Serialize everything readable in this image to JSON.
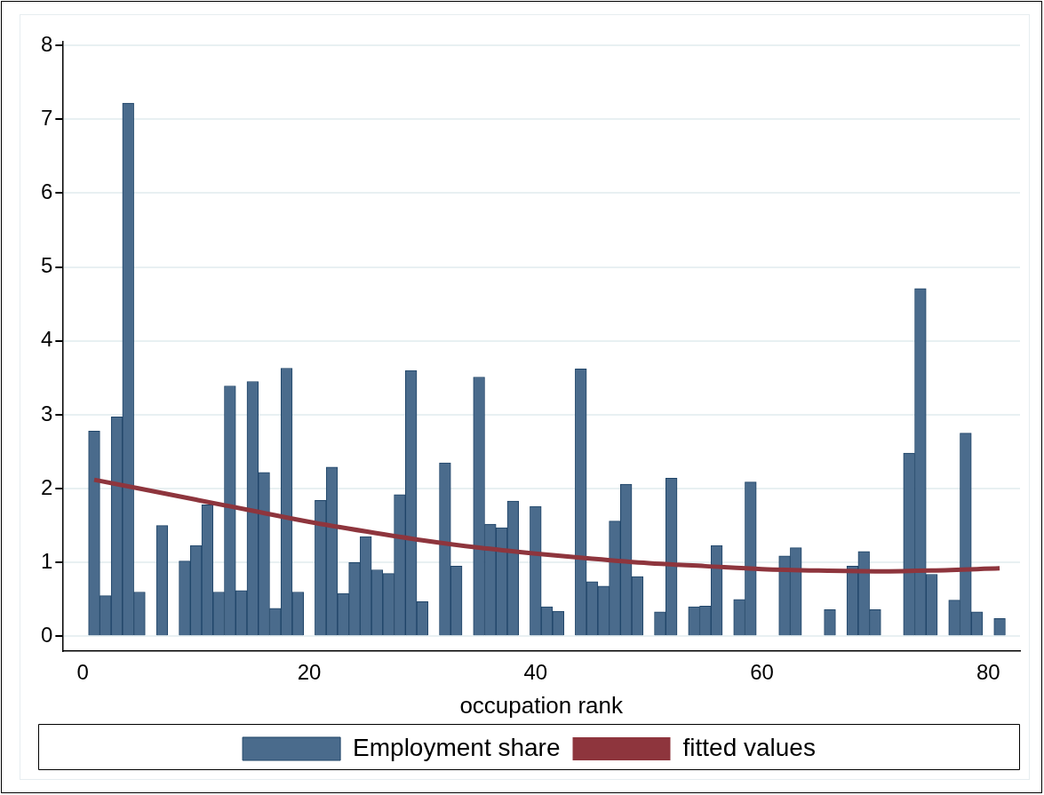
{
  "chart_data": {
    "type": "bar",
    "xlabel": "occupation rank",
    "x": [
      1,
      2,
      3,
      4,
      5,
      6,
      7,
      8,
      9,
      10,
      11,
      12,
      13,
      14,
      15,
      16,
      17,
      18,
      19,
      20,
      21,
      22,
      23,
      24,
      25,
      26,
      27,
      28,
      29,
      30,
      31,
      32,
      33,
      34,
      35,
      36,
      37,
      38,
      39,
      40,
      41,
      42,
      43,
      44,
      45,
      46,
      47,
      48,
      49,
      50,
      51,
      52,
      53,
      54,
      55,
      56,
      57,
      58,
      59,
      60,
      61,
      62,
      63,
      64,
      65,
      66,
      67,
      68,
      69,
      70,
      71,
      72,
      73,
      74,
      75,
      76,
      77,
      78,
      79,
      80,
      81
    ],
    "series": [
      {
        "name": "Employment share",
        "color": "#4a6b8c",
        "values": [
          2.78,
          0.55,
          2.97,
          7.22,
          0.6,
          null,
          1.5,
          null,
          1.02,
          1.23,
          1.78,
          0.6,
          3.39,
          0.62,
          3.45,
          2.22,
          0.38,
          3.63,
          0.6,
          null,
          1.84,
          2.29,
          0.58,
          1.0,
          1.35,
          0.9,
          0.85,
          1.92,
          3.6,
          0.47,
          null,
          2.35,
          0.95,
          null,
          3.51,
          1.52,
          1.47,
          1.83,
          null,
          1.76,
          0.4,
          0.34,
          null,
          3.62,
          0.74,
          0.68,
          1.56,
          2.06,
          0.81,
          null,
          0.33,
          2.14,
          null,
          0.4,
          0.41,
          1.23,
          null,
          0.5,
          2.09,
          null,
          null,
          1.09,
          1.2,
          null,
          null,
          0.36,
          null,
          0.95,
          1.15,
          0.36,
          null,
          null,
          2.48,
          4.71,
          0.84,
          null,
          0.49,
          2.75,
          0.33,
          null,
          0.24
        ]
      },
      {
        "name": "fitted values",
        "type": "line",
        "color": "#8e353d",
        "x": [
          1,
          5,
          10,
          15,
          20,
          25,
          30,
          35,
          40,
          45,
          50,
          55,
          60,
          65,
          70,
          75,
          81
        ],
        "values": [
          2.12,
          2.0,
          1.85,
          1.7,
          1.55,
          1.42,
          1.3,
          1.2,
          1.12,
          1.05,
          0.99,
          0.95,
          0.91,
          0.89,
          0.88,
          0.89,
          0.92
        ]
      }
    ],
    "xlim": [
      -1.8,
      82.8
    ],
    "xticks": [
      0,
      20,
      40,
      60,
      80
    ],
    "ylim": [
      -0.2,
      8.05
    ],
    "yticks": [
      0,
      1,
      2,
      3,
      4,
      5,
      6,
      7,
      8
    ],
    "grid": "y",
    "legend": "bottom",
    "marker": "none",
    "line_style": "solid"
  }
}
